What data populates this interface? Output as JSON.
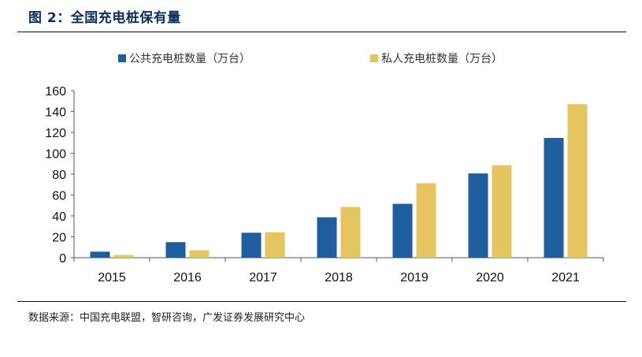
{
  "figure": {
    "title": "图 2：全国充电桩保有量",
    "source": "数据来源：中国充电联盟，智研咨询，广发证券发展研究中心"
  },
  "colors": {
    "public": "#1f5f9e",
    "private": "#e5c55f"
  },
  "chart_data": {
    "type": "bar",
    "categories": [
      "2015",
      "2016",
      "2017",
      "2018",
      "2019",
      "2020",
      "2021"
    ],
    "series": [
      {
        "name": "公共充电桩数量（万台）",
        "values": [
          5.8,
          14.9,
          23.9,
          38.7,
          51.6,
          80.7,
          114.7
        ]
      },
      {
        "name": "私人充电桩数量（万台）",
        "values": [
          2.6,
          7.1,
          24.4,
          48.6,
          71.3,
          88.6,
          147.0
        ]
      }
    ],
    "yticks": [
      "0",
      "20",
      "40",
      "60",
      "80",
      "100",
      "120",
      "140",
      "160"
    ],
    "ylim": [
      0,
      160
    ],
    "legend_position": "top-center",
    "grid": false
  }
}
